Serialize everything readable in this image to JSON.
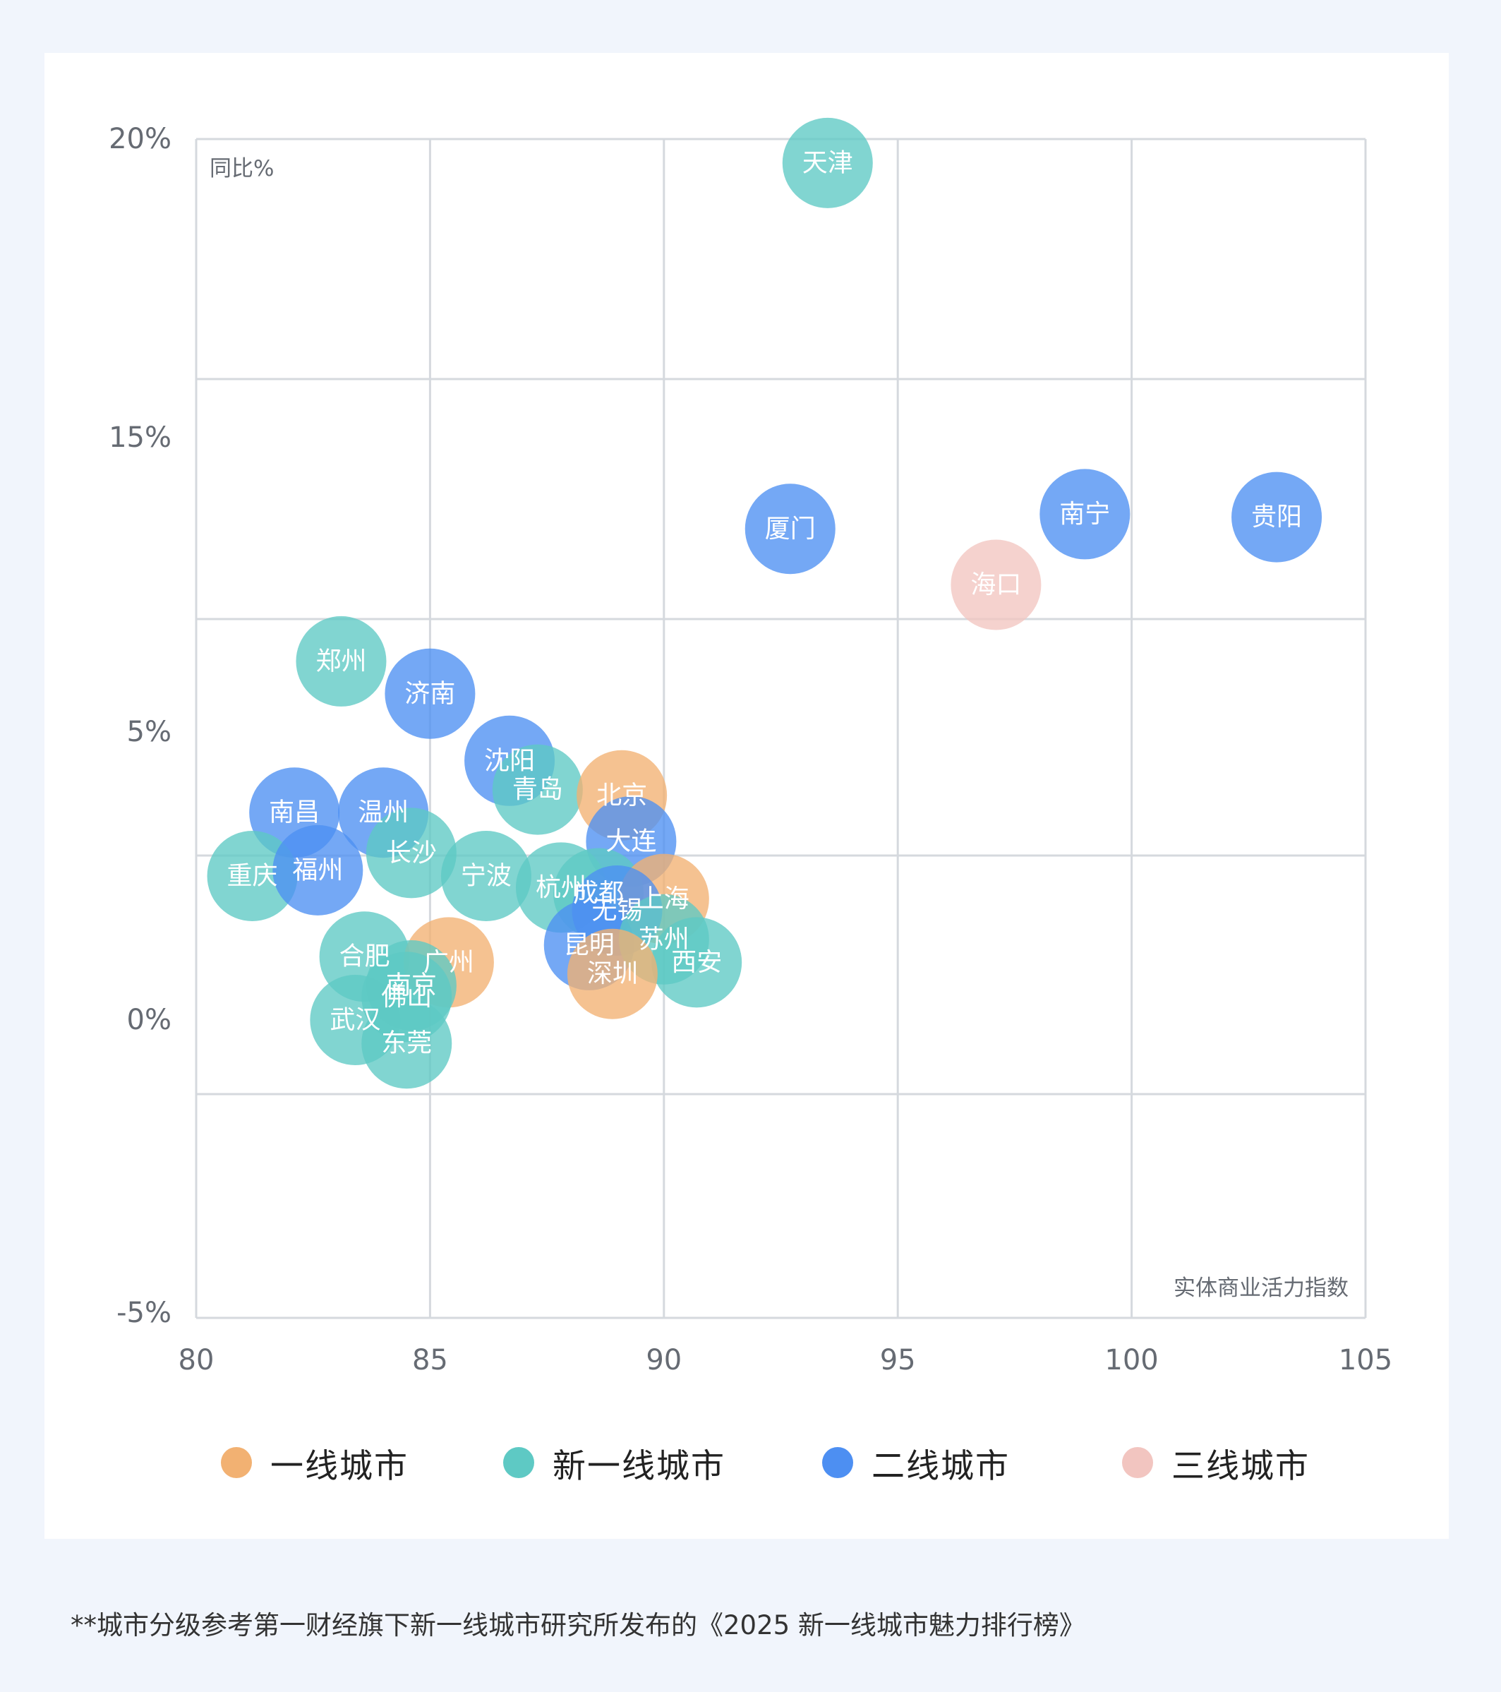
{
  "chart_data": {
    "type": "scatter",
    "title": "",
    "xlabel": "实体商业活力指数",
    "ylabel": "同比%",
    "xlim": [
      80,
      105
    ],
    "ylim": [
      -5,
      20
    ],
    "x_ticks": [
      "80",
      "85",
      "90",
      "95",
      "100",
      "105"
    ],
    "y_ticks": [
      "20%",
      "15%",
      "5%",
      "0%",
      "-5%"
    ],
    "legend_position": "bottom",
    "grid": true,
    "categories": [
      {
        "name": "一线城市",
        "color": "#f2b172"
      },
      {
        "name": "新一线城市",
        "color": "#5ec9c4"
      },
      {
        "name": "二线城市",
        "color": "#4d8ff2"
      },
      {
        "name": "三线城市",
        "color": "#f2c5c0"
      }
    ],
    "points": [
      {
        "city": "天津",
        "x": 93.5,
        "y": 19.6,
        "category": "新一线城市"
      },
      {
        "city": "南宁",
        "x": 99.0,
        "y": 12.4,
        "category": "二线城市"
      },
      {
        "city": "贵阳",
        "x": 103.1,
        "y": 12.3,
        "category": "二线城市"
      },
      {
        "city": "厦门",
        "x": 92.7,
        "y": 11.9,
        "category": "二线城市"
      },
      {
        "city": "海口",
        "x": 97.1,
        "y": 10.0,
        "category": "三线城市"
      },
      {
        "city": "郑州",
        "x": 83.1,
        "y": 7.4,
        "category": "新一线城市"
      },
      {
        "city": "济南",
        "x": 85.0,
        "y": 6.3,
        "category": "二线城市"
      },
      {
        "city": "沈阳",
        "x": 86.7,
        "y": 4.5,
        "category": "二线城市"
      },
      {
        "city": "青岛",
        "x": 87.3,
        "y": 4.0,
        "category": "新一线城市"
      },
      {
        "city": "北京",
        "x": 89.1,
        "y": 3.9,
        "category": "一线城市"
      },
      {
        "city": "南昌",
        "x": 82.1,
        "y": 3.6,
        "category": "二线城市"
      },
      {
        "city": "温州",
        "x": 84.0,
        "y": 3.6,
        "category": "二线城市"
      },
      {
        "city": "大连",
        "x": 89.3,
        "y": 3.1,
        "category": "二线城市"
      },
      {
        "city": "长沙",
        "x": 84.6,
        "y": 2.9,
        "category": "新一线城市"
      },
      {
        "city": "重庆",
        "x": 81.2,
        "y": 2.5,
        "category": "新一线城市"
      },
      {
        "city": "福州",
        "x": 82.6,
        "y": 2.6,
        "category": "二线城市"
      },
      {
        "city": "宁波",
        "x": 86.2,
        "y": 2.5,
        "category": "新一线城市"
      },
      {
        "city": "杭州",
        "x": 87.8,
        "y": 2.3,
        "category": "新一线城市"
      },
      {
        "city": "成都",
        "x": 88.6,
        "y": 2.2,
        "category": "新一线城市"
      },
      {
        "city": "上海",
        "x": 90.0,
        "y": 2.1,
        "category": "一线城市"
      },
      {
        "city": "无锡",
        "x": 89.0,
        "y": 1.9,
        "category": "二线城市"
      },
      {
        "city": "昆明",
        "x": 88.4,
        "y": 1.3,
        "category": "二线城市"
      },
      {
        "city": "苏州",
        "x": 90.0,
        "y": 1.4,
        "category": "新一线城市"
      },
      {
        "city": "西安",
        "x": 90.7,
        "y": 1.0,
        "category": "新一线城市"
      },
      {
        "city": "深圳",
        "x": 88.9,
        "y": 0.8,
        "category": "一线城市"
      },
      {
        "city": "合肥",
        "x": 83.6,
        "y": 1.1,
        "category": "新一线城市"
      },
      {
        "city": "广州",
        "x": 85.4,
        "y": 1.0,
        "category": "一线城市"
      },
      {
        "city": "南京",
        "x": 84.6,
        "y": 0.6,
        "category": "新一线城市"
      },
      {
        "city": "佛山",
        "x": 84.5,
        "y": 0.4,
        "category": "新一线城市"
      },
      {
        "city": "武汉",
        "x": 83.4,
        "y": 0.0,
        "category": "新一线城市"
      },
      {
        "city": "东莞",
        "x": 84.5,
        "y": -0.4,
        "category": "新一线城市"
      }
    ]
  },
  "footnote": "**城市分级参考第一财经旗下新一线城市研究所发布的《2025 新一线城市魅力排行榜》"
}
